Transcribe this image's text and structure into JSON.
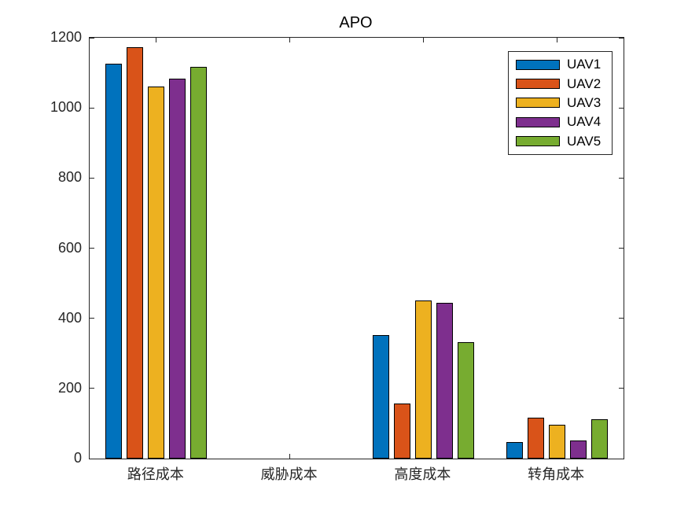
{
  "chart_data": {
    "type": "bar",
    "title": "APO",
    "categories": [
      "路径成本",
      "威胁成本",
      "高度成本",
      "转角成本"
    ],
    "series": [
      {
        "name": "UAV1",
        "color": "#0072BD",
        "values": [
          1125,
          0,
          352,
          48
        ]
      },
      {
        "name": "UAV2",
        "color": "#D95319",
        "values": [
          1174,
          0,
          157,
          117
        ]
      },
      {
        "name": "UAV3",
        "color": "#EDB120",
        "values": [
          1060,
          0,
          450,
          97
        ]
      },
      {
        "name": "UAV4",
        "color": "#7E2F8E",
        "values": [
          1084,
          0,
          444,
          52
        ]
      },
      {
        "name": "UAV5",
        "color": "#77AC30",
        "values": [
          1116,
          0,
          332,
          112
        ]
      }
    ],
    "xlabel": "",
    "ylabel": "",
    "ylim": [
      0,
      1200
    ],
    "ytick_step": 200,
    "grid": false,
    "legend_position": "top-right",
    "axis_color": "#262626",
    "bar_edge_color": "#000000",
    "background_color": "#ffffff"
  }
}
